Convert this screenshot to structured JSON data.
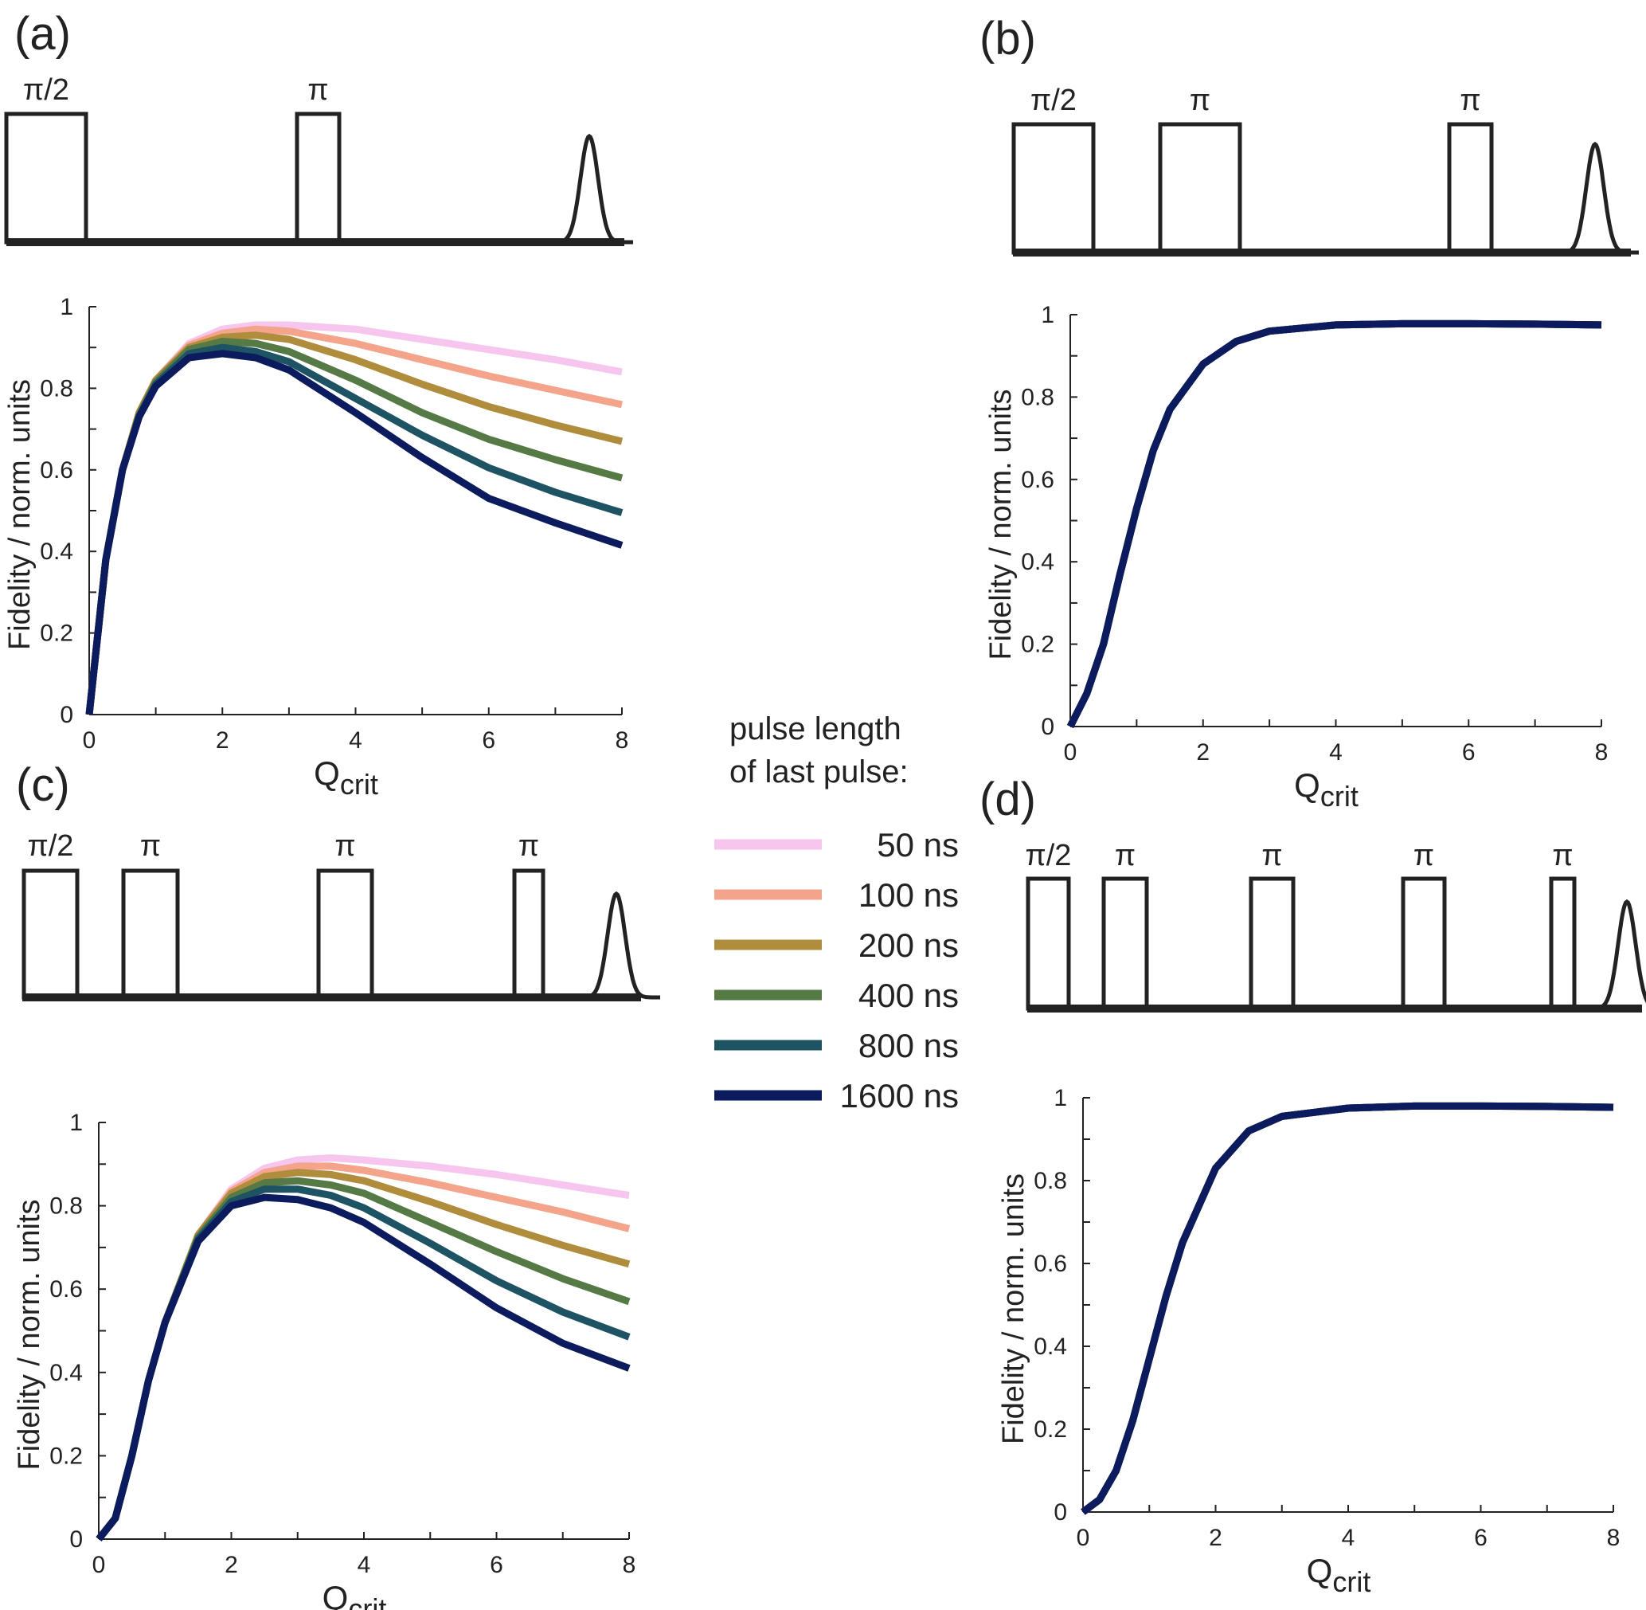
{
  "colors": {
    "series": [
      "#f6c6ef",
      "#f4a48b",
      "#b08d3c",
      "#567a45",
      "#1e5364",
      "#0c1a5e"
    ],
    "axis": "#222222",
    "pulse": "#222222"
  },
  "legend": {
    "title_line1": "pulse length",
    "title_line2": "of last pulse:",
    "items": [
      "50 ns",
      "100 ns",
      "200 ns",
      "400 ns",
      "800 ns",
      "1600 ns"
    ]
  },
  "panels": [
    {
      "id": "a",
      "label": "(a)",
      "pulse_labels": [
        "π/2",
        "π"
      ]
    },
    {
      "id": "b",
      "label": "(b)",
      "pulse_labels": [
        "π/2",
        "π",
        "π"
      ]
    },
    {
      "id": "c",
      "label": "(c)",
      "pulse_labels": [
        "π/2",
        "π",
        "π",
        "π"
      ]
    },
    {
      "id": "d",
      "label": "(d)",
      "pulse_labels": [
        "π/2",
        "π",
        "π",
        "π",
        "π"
      ]
    }
  ],
  "chart_data": [
    {
      "panel": "a",
      "type": "line",
      "xlabel": "Q",
      "xlabel_sub": "crit",
      "ylabel": "Fidelity / norm. units",
      "xlim": [
        0,
        8
      ],
      "ylim": [
        0,
        1
      ],
      "xticks": [
        "0",
        "2",
        "4",
        "6",
        "8"
      ],
      "yticks": [
        "0",
        "0.2",
        "0.4",
        "0.6",
        "0.8",
        "1"
      ],
      "x": [
        0,
        0.25,
        0.5,
        0.75,
        1,
        1.5,
        2,
        2.5,
        3,
        4,
        5,
        6,
        7,
        8
      ],
      "series": [
        {
          "name": "50 ns",
          "values": [
            0,
            0.38,
            0.6,
            0.74,
            0.82,
            0.91,
            0.945,
            0.955,
            0.955,
            0.945,
            0.92,
            0.895,
            0.87,
            0.84
          ]
        },
        {
          "name": "100 ns",
          "values": [
            0,
            0.38,
            0.6,
            0.74,
            0.82,
            0.905,
            0.935,
            0.945,
            0.94,
            0.91,
            0.87,
            0.83,
            0.795,
            0.76
          ]
        },
        {
          "name": "200 ns",
          "values": [
            0,
            0.38,
            0.6,
            0.74,
            0.82,
            0.9,
            0.925,
            0.93,
            0.92,
            0.87,
            0.81,
            0.755,
            0.71,
            0.67
          ]
        },
        {
          "name": "400 ns",
          "values": [
            0,
            0.38,
            0.6,
            0.735,
            0.815,
            0.895,
            0.915,
            0.91,
            0.89,
            0.82,
            0.74,
            0.675,
            0.625,
            0.58
          ]
        },
        {
          "name": "800 ns",
          "values": [
            0,
            0.38,
            0.6,
            0.73,
            0.81,
            0.885,
            0.9,
            0.89,
            0.865,
            0.775,
            0.685,
            0.605,
            0.545,
            0.495
          ]
        },
        {
          "name": "1600 ns",
          "values": [
            0,
            0.38,
            0.6,
            0.73,
            0.805,
            0.875,
            0.885,
            0.875,
            0.845,
            0.74,
            0.63,
            0.53,
            0.47,
            0.415
          ]
        }
      ]
    },
    {
      "panel": "b",
      "type": "line",
      "xlabel": "Q",
      "xlabel_sub": "crit",
      "ylabel": "Fidelity / norm. units",
      "xlim": [
        0,
        8
      ],
      "ylim": [
        0,
        1
      ],
      "xticks": [
        "0",
        "2",
        "4",
        "6",
        "8"
      ],
      "yticks": [
        "0",
        "0.2",
        "0.4",
        "0.6",
        "0.8",
        "1"
      ],
      "x": [
        0,
        0.25,
        0.5,
        0.75,
        1,
        1.25,
        1.5,
        2,
        2.5,
        3,
        4,
        5,
        6,
        7,
        8
      ],
      "series": [
        {
          "name": "50 ns",
          "values": [
            0,
            0.08,
            0.2,
            0.37,
            0.53,
            0.67,
            0.77,
            0.88,
            0.935,
            0.96,
            0.975,
            0.978,
            0.978,
            0.977,
            0.975
          ]
        },
        {
          "name": "100 ns",
          "values": [
            0,
            0.08,
            0.2,
            0.37,
            0.53,
            0.67,
            0.77,
            0.88,
            0.935,
            0.96,
            0.975,
            0.978,
            0.978,
            0.977,
            0.975
          ]
        },
        {
          "name": "200 ns",
          "values": [
            0,
            0.08,
            0.2,
            0.37,
            0.53,
            0.67,
            0.77,
            0.88,
            0.935,
            0.96,
            0.975,
            0.978,
            0.978,
            0.977,
            0.975
          ]
        },
        {
          "name": "400 ns",
          "values": [
            0,
            0.08,
            0.2,
            0.37,
            0.53,
            0.67,
            0.77,
            0.88,
            0.935,
            0.96,
            0.975,
            0.978,
            0.978,
            0.977,
            0.975
          ]
        },
        {
          "name": "800 ns",
          "values": [
            0,
            0.08,
            0.2,
            0.37,
            0.53,
            0.67,
            0.77,
            0.88,
            0.935,
            0.96,
            0.975,
            0.978,
            0.978,
            0.977,
            0.975
          ]
        },
        {
          "name": "1600 ns",
          "values": [
            0,
            0.08,
            0.2,
            0.37,
            0.53,
            0.67,
            0.77,
            0.88,
            0.935,
            0.96,
            0.975,
            0.978,
            0.978,
            0.977,
            0.975
          ]
        }
      ]
    },
    {
      "panel": "c",
      "type": "line",
      "xlabel": "Q",
      "xlabel_sub": "crit",
      "ylabel": "Fidelity / norm. units",
      "xlim": [
        0,
        8
      ],
      "ylim": [
        0,
        1
      ],
      "xticks": [
        "0",
        "2",
        "4",
        "6",
        "8"
      ],
      "yticks": [
        "0",
        "0.2",
        "0.4",
        "0.6",
        "0.8",
        "1"
      ],
      "x": [
        0,
        0.25,
        0.5,
        0.75,
        1,
        1.5,
        2,
        2.5,
        3,
        3.5,
        4,
        5,
        6,
        7,
        8
      ],
      "series": [
        {
          "name": "50 ns",
          "values": [
            0,
            0.05,
            0.2,
            0.38,
            0.52,
            0.73,
            0.84,
            0.89,
            0.91,
            0.915,
            0.91,
            0.895,
            0.875,
            0.85,
            0.825
          ]
        },
        {
          "name": "100 ns",
          "values": [
            0,
            0.05,
            0.2,
            0.38,
            0.52,
            0.73,
            0.835,
            0.88,
            0.895,
            0.895,
            0.885,
            0.855,
            0.82,
            0.785,
            0.745
          ]
        },
        {
          "name": "200 ns",
          "values": [
            0,
            0.05,
            0.2,
            0.38,
            0.52,
            0.73,
            0.83,
            0.87,
            0.88,
            0.875,
            0.86,
            0.81,
            0.755,
            0.705,
            0.66
          ]
        },
        {
          "name": "400 ns",
          "values": [
            0,
            0.05,
            0.2,
            0.38,
            0.52,
            0.725,
            0.82,
            0.855,
            0.86,
            0.85,
            0.83,
            0.76,
            0.69,
            0.625,
            0.57
          ]
        },
        {
          "name": "800 ns",
          "values": [
            0,
            0.05,
            0.2,
            0.38,
            0.52,
            0.72,
            0.81,
            0.84,
            0.84,
            0.825,
            0.795,
            0.71,
            0.62,
            0.545,
            0.485
          ]
        },
        {
          "name": "1600 ns",
          "values": [
            0,
            0.05,
            0.2,
            0.38,
            0.52,
            0.715,
            0.8,
            0.82,
            0.815,
            0.795,
            0.76,
            0.66,
            0.555,
            0.47,
            0.41
          ]
        }
      ]
    },
    {
      "panel": "d",
      "type": "line",
      "xlabel": "Q",
      "xlabel_sub": "crit",
      "ylabel": "Fidelity / norm. units",
      "xlim": [
        0,
        8
      ],
      "ylim": [
        0,
        1
      ],
      "xticks": [
        "0",
        "2",
        "4",
        "6",
        "8"
      ],
      "yticks": [
        "0",
        "0.2",
        "0.4",
        "0.6",
        "0.8",
        "1"
      ],
      "x": [
        0,
        0.25,
        0.5,
        0.75,
        1,
        1.25,
        1.5,
        2,
        2.5,
        3,
        4,
        5,
        6,
        7,
        8
      ],
      "series": [
        {
          "name": "50 ns",
          "values": [
            0,
            0.03,
            0.1,
            0.22,
            0.37,
            0.52,
            0.65,
            0.83,
            0.92,
            0.955,
            0.975,
            0.98,
            0.98,
            0.979,
            0.977
          ]
        },
        {
          "name": "100 ns",
          "values": [
            0,
            0.03,
            0.1,
            0.22,
            0.37,
            0.52,
            0.65,
            0.83,
            0.92,
            0.955,
            0.975,
            0.98,
            0.98,
            0.979,
            0.977
          ]
        },
        {
          "name": "200 ns",
          "values": [
            0,
            0.03,
            0.1,
            0.22,
            0.37,
            0.52,
            0.65,
            0.83,
            0.92,
            0.955,
            0.975,
            0.98,
            0.98,
            0.979,
            0.977
          ]
        },
        {
          "name": "400 ns",
          "values": [
            0,
            0.03,
            0.1,
            0.22,
            0.37,
            0.52,
            0.65,
            0.83,
            0.92,
            0.955,
            0.975,
            0.98,
            0.98,
            0.979,
            0.977
          ]
        },
        {
          "name": "800 ns",
          "values": [
            0,
            0.03,
            0.1,
            0.22,
            0.37,
            0.52,
            0.65,
            0.83,
            0.92,
            0.955,
            0.975,
            0.98,
            0.98,
            0.979,
            0.977
          ]
        },
        {
          "name": "1600 ns",
          "values": [
            0,
            0.03,
            0.1,
            0.22,
            0.37,
            0.52,
            0.65,
            0.83,
            0.92,
            0.955,
            0.975,
            0.98,
            0.98,
            0.979,
            0.977
          ]
        }
      ]
    }
  ]
}
